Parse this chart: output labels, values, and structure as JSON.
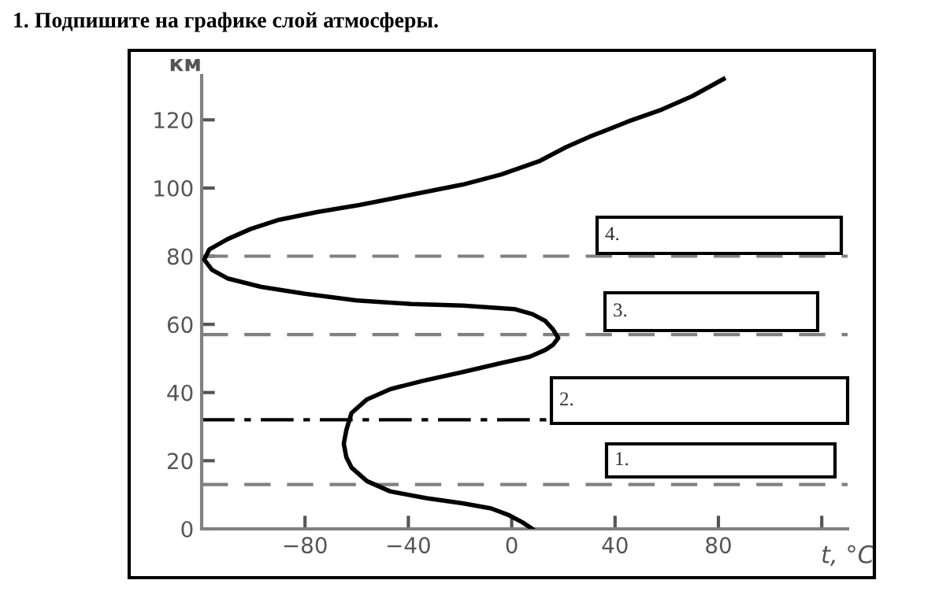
{
  "chart_data": {
    "type": "line",
    "title": "1. Подпишите на графике слой атмосферы.",
    "xlabel": "t, °C",
    "ylabel": "км",
    "x": [
      8,
      4,
      -1,
      -8,
      -19,
      -33,
      -47,
      -56,
      -62,
      -64,
      -65,
      -64,
      -62,
      -56,
      -47,
      -34,
      -19,
      -5,
      7,
      13,
      16,
      18,
      16,
      13,
      8,
      1,
      -19,
      -39,
      -60,
      -80,
      -97,
      -110,
      -116,
      -119,
      -117,
      -110,
      -101,
      -90,
      -75,
      -59,
      -39,
      -19,
      -4,
      11,
      21,
      30,
      45,
      58,
      70,
      82
    ],
    "values": [
      0,
      2,
      4,
      6,
      7.5,
      9,
      11,
      14,
      18,
      21,
      25,
      29,
      34,
      38,
      41,
      43.5,
      46,
      48.5,
      50.5,
      52.5,
      54,
      56,
      58.5,
      61,
      63,
      64.5,
      65.5,
      66,
      67,
      69,
      71,
      73.5,
      76,
      79,
      82,
      85,
      88,
      90.7,
      93,
      95,
      98,
      101,
      104,
      108,
      112,
      115,
      119.5,
      123,
      127,
      132
    ],
    "color": "#000000",
    "xlim": [
      -120,
      130
    ],
    "ylim": [
      0,
      133
    ],
    "xticks": [
      -80,
      -40,
      0,
      40,
      80,
      {
        "value": 120,
        "label": null
      }
    ],
    "yticks": [
      0,
      20,
      40,
      60,
      80,
      100,
      120
    ],
    "ref_lines": [
      {
        "axis": "y",
        "value": 13,
        "color": "#808080",
        "line_style": "dashed"
      },
      {
        "axis": "y",
        "value": 32,
        "color": "#000000",
        "line_style": "dashdot"
      },
      {
        "axis": "y",
        "value": 57,
        "color": "#808080",
        "line_style": "dashed"
      },
      {
        "axis": "y",
        "value": 80,
        "color": "#808080",
        "line_style": "dashed"
      }
    ],
    "annotations": [
      "1.",
      "2.",
      "3.",
      "4."
    ],
    "grid": false
  }
}
